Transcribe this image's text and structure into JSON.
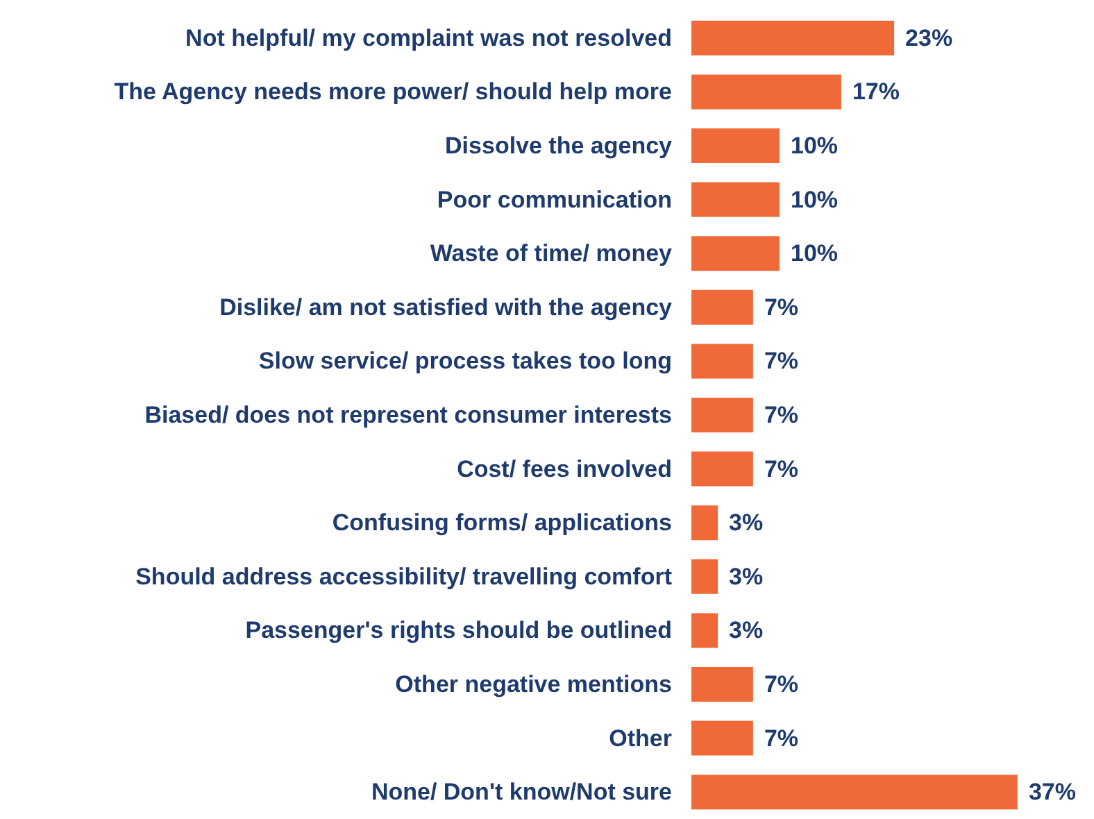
{
  "chart_data": {
    "type": "bar",
    "orientation": "horizontal",
    "categories": [
      "Not helpful/ my complaint was not resolved",
      "The Agency needs more power/ should help more",
      "Dissolve the agency",
      "Poor communication",
      "Waste of time/ money",
      "Dislike/ am not satisfied with the agency",
      "Slow service/ process takes too long",
      "Biased/ does not represent consumer interests",
      "Cost/ fees involved",
      "Confusing forms/ applications",
      "Should address accessibility/ travelling comfort",
      "Passenger's rights should be outlined",
      "Other negative mentions",
      "Other",
      "None/ Don't know/Not sure"
    ],
    "values": [
      23,
      17,
      10,
      10,
      10,
      7,
      7,
      7,
      7,
      3,
      3,
      3,
      7,
      7,
      37
    ],
    "value_labels": [
      "23%",
      "17%",
      "10%",
      "10%",
      "10%",
      "7%",
      "7%",
      "7%",
      "7%",
      "3%",
      "3%",
      "3%",
      "7%",
      "7%",
      "37%"
    ],
    "color": "#ef6a38"
  }
}
